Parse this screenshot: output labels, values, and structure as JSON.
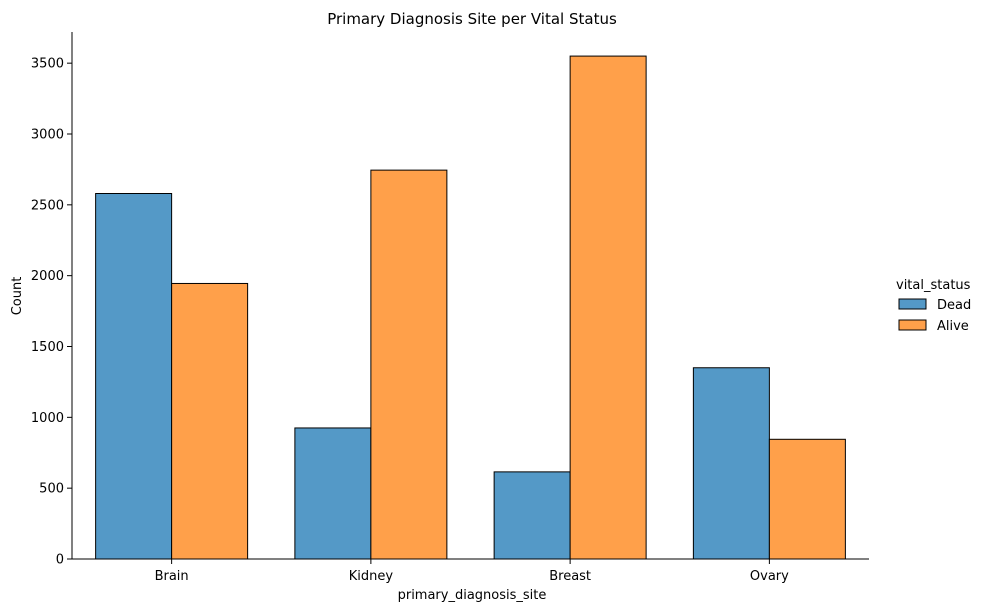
{
  "chart_data": {
    "type": "bar",
    "title": "Primary Diagnosis Site per Vital Status",
    "xlabel": "primary_diagnosis_site",
    "ylabel": "Count",
    "categories": [
      "Brain",
      "Kidney",
      "Breast",
      "Ovary"
    ],
    "series": [
      {
        "name": "Dead",
        "values": [
          2580,
          925,
          615,
          1350
        ],
        "color": "#5499c7"
      },
      {
        "name": "Alive",
        "values": [
          1945,
          2745,
          3550,
          845
        ],
        "color": "#ffa04a"
      }
    ],
    "ylim": [
      0,
      3720
    ],
    "yticks": [
      "0",
      "500",
      "1000",
      "1500",
      "2000",
      "2500",
      "3000",
      "3500"
    ],
    "grid": false,
    "legend": {
      "title": "vital_status",
      "position": "right"
    }
  }
}
